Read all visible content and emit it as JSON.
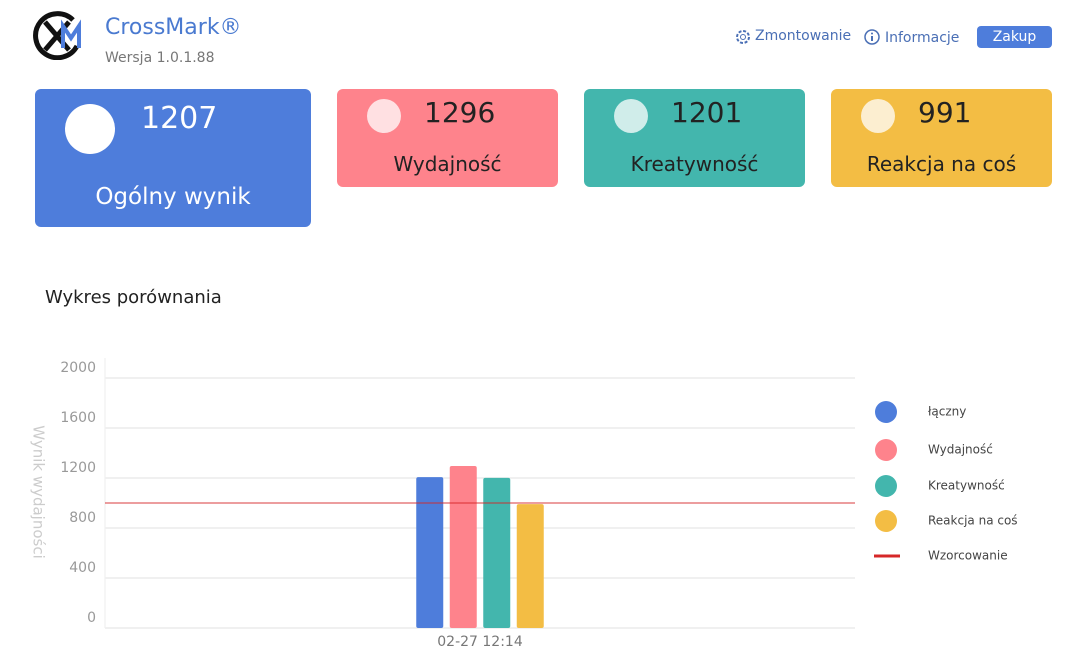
{
  "header": {
    "app_name": "CrossMark®",
    "version": "Wersja 1.0.1.88"
  },
  "nav": {
    "settings": "Zmontowanie",
    "info": "Informacje",
    "buy": "Zakup"
  },
  "cards": [
    {
      "value": 1207,
      "label": "Ogólny wynik",
      "color": "#4e7ddb"
    },
    {
      "value": 1296,
      "label": "Wydajność",
      "color": "#fe838c"
    },
    {
      "value": 1201,
      "label": "Kreatywność",
      "color": "#43b6ad"
    },
    {
      "value": 991,
      "label": "Reakcja na coś",
      "color": "#f3bd44"
    }
  ],
  "chart_data": {
    "type": "bar",
    "title": "Wykres porównania",
    "y_label": "Wynik wydajności",
    "categories": [
      "02-27 12:14"
    ],
    "series": [
      {
        "name": "łączny",
        "color": "#4e7ddb",
        "values": [
          1207
        ]
      },
      {
        "name": "Wydajność",
        "color": "#fe838c",
        "values": [
          1296
        ]
      },
      {
        "name": "Kreatywność",
        "color": "#43b6ad",
        "values": [
          1201
        ]
      },
      {
        "name": "Reakcja na coś",
        "color": "#f3bd44",
        "values": [
          991
        ]
      }
    ],
    "reference_lines": [
      {
        "name": "Wzorcowanie",
        "value": 1000,
        "color": "#d62728"
      }
    ],
    "ylim": [
      0,
      2000
    ],
    "yticks": [
      0,
      400,
      800,
      1200,
      1600,
      2000
    ],
    "grid": true,
    "legend": "right"
  }
}
